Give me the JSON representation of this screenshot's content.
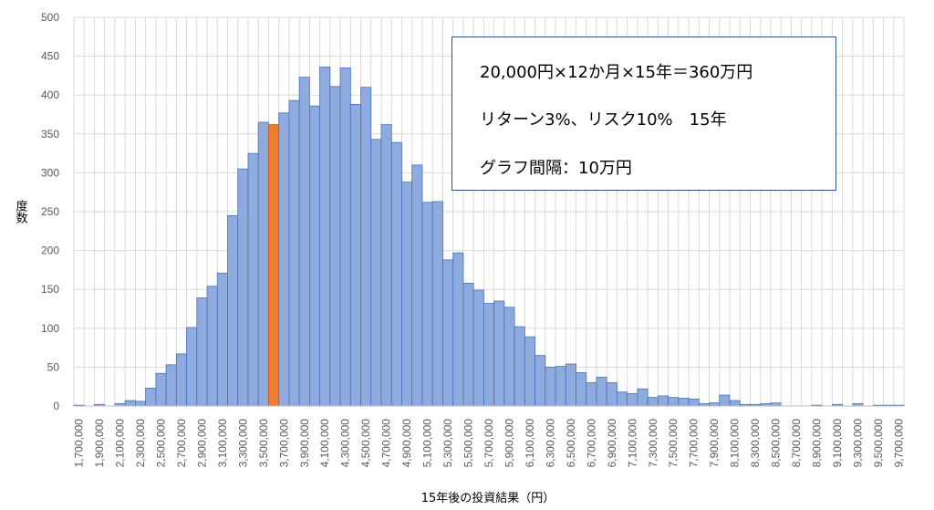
{
  "chart_data": {
    "type": "bar",
    "title": "",
    "xlabel": "15年後の投資結果（円）",
    "ylabel": "度数",
    "ylim": [
      0,
      500
    ],
    "yticks": [
      "0",
      "50",
      "100",
      "150",
      "200",
      "250",
      "300",
      "350",
      "400",
      "450",
      "500"
    ],
    "x_tick_labels": [
      "1,700,000",
      "1,900,000",
      "2,100,000",
      "2,300,000",
      "2,500,000",
      "2,700,000",
      "2,900,000",
      "3,100,000",
      "3,300,000",
      "3,500,000",
      "3,700,000",
      "3,900,000",
      "4,100,000",
      "4,300,000",
      "4,500,000",
      "4,700,000",
      "4,900,000",
      "5,100,000",
      "5,300,000",
      "5,500,000",
      "5,700,000",
      "5,900,000",
      "6,100,000",
      "6,300,000",
      "6,500,000",
      "6,700,000",
      "6,900,000",
      "7,100,000",
      "7,300,000",
      "7,500,000",
      "7,700,000",
      "7,900,000",
      "8,100,000",
      "8,300,000",
      "8,500,000",
      "8,700,000",
      "8,900,000",
      "9,100,000",
      "9,300,000",
      "9,500,000",
      "9,700,000"
    ],
    "x_start": 1700000,
    "x_step": 100000,
    "values": [
      1,
      0,
      2,
      0,
      3,
      7,
      6,
      23,
      42,
      53,
      67,
      101,
      139,
      154,
      171,
      245,
      305,
      325,
      365,
      362,
      377,
      393,
      423,
      386,
      436,
      411,
      435,
      388,
      410,
      343,
      362,
      339,
      288,
      310,
      262,
      263,
      188,
      197,
      158,
      149,
      132,
      135,
      127,
      102,
      89,
      65,
      50,
      51,
      54,
      43,
      30,
      37,
      30,
      18,
      16,
      22,
      11,
      13,
      11,
      10,
      9,
      3,
      4,
      14,
      7,
      2,
      2,
      3,
      4,
      0,
      0,
      0,
      1,
      0,
      2,
      0,
      3,
      0,
      1,
      1,
      1
    ],
    "highlight_bar": 3600000,
    "grid": true,
    "colors": {
      "bar": "#8FAADC",
      "bar_border": "#4472C4",
      "highlight": "#ED7D31",
      "highlight_border": "#C55A11",
      "grid": "#D9D9D9"
    }
  },
  "annotation": {
    "line1": "20,000円×12か月×15年＝360万円",
    "line2": "リターン3%、リスク10%　15年",
    "line3": "グラフ間隔：10万円"
  }
}
